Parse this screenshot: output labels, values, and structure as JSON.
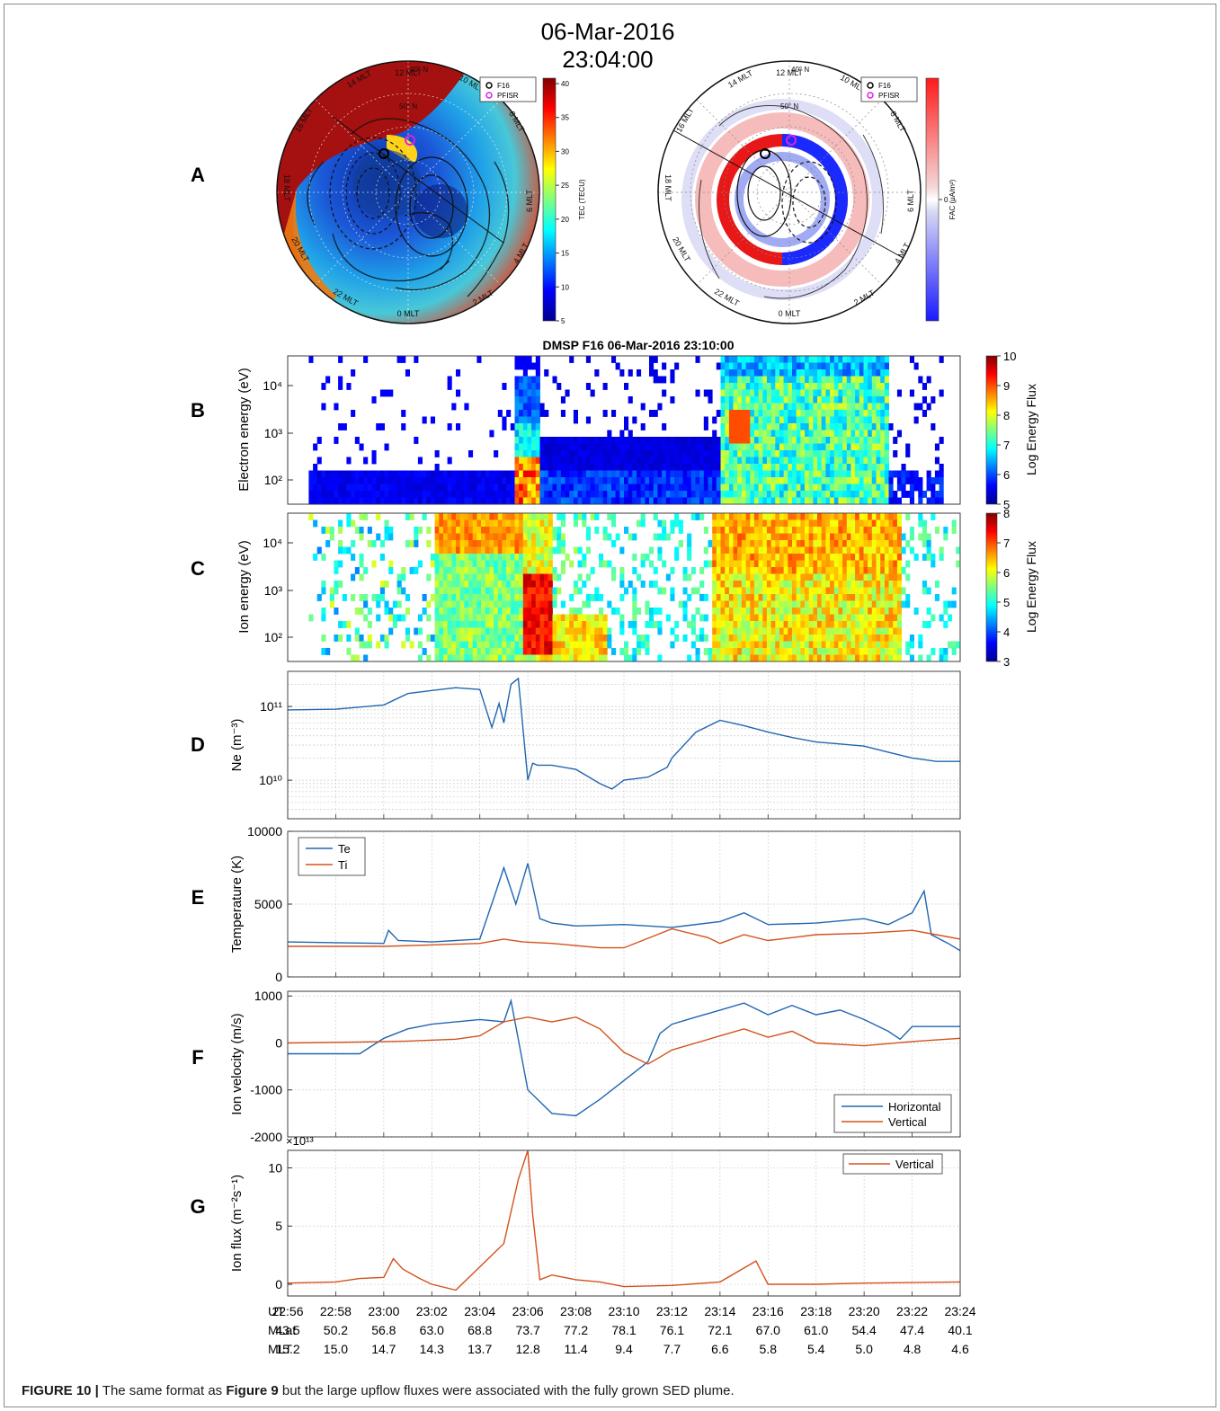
{
  "header": {
    "date": "06-Mar-2016",
    "time": "23:04:00"
  },
  "panel_letters": [
    "A",
    "B",
    "C",
    "D",
    "E",
    "F",
    "G"
  ],
  "map_left": {
    "legend": [
      "F16",
      "PFISR"
    ],
    "mlt_labels": [
      "12 MLT",
      "14 MLT",
      "10 MLT",
      "16 MLT",
      "8 MLT",
      "18 MLT",
      "6 MLT",
      "20 MLT",
      "4 MLT",
      "22 MLT",
      "2 MLT",
      "0 MLT"
    ],
    "lat_labels": [
      "40° N",
      "50° N"
    ],
    "colorbar_label": "TEC (TECU)",
    "colorbar_ticks": [
      "40",
      "35",
      "30",
      "25",
      "20",
      "15",
      "10",
      "5"
    ]
  },
  "map_right": {
    "legend": [
      "F16",
      "PFISR"
    ],
    "mlt_labels": [
      "12 MLT",
      "14 MLT",
      "10 MLT",
      "16 MLT",
      "8 MLT",
      "18 MLT",
      "6 MLT",
      "20 MLT",
      "4 MLT",
      "22 MLT",
      "2 MLT",
      "0 MLT"
    ],
    "lat_labels": [
      "40° N",
      "50° N"
    ],
    "colorbar_label": "FAC (μA/m²)",
    "colorbar_ticks": [
      "0"
    ]
  },
  "dmsp_title": "DMSP F16 06-Mar-2016 23:10:00",
  "colors": {
    "te": "#2166b0",
    "ti": "#d2521c",
    "horizontal": "#2166b0",
    "vertical": "#d2521c"
  },
  "chart_data": [
    {
      "panel": "B",
      "type": "heatmap",
      "ylabel": "Electron energy (eV)",
      "yticks": [
        "10²",
        "10³",
        "10⁴"
      ],
      "colorbar_label": "Log Energy Flux",
      "colorbar_ticks": [
        "5",
        "6",
        "7",
        "8",
        "9",
        "10"
      ],
      "colorbar_range": [
        5,
        10
      ]
    },
    {
      "panel": "C",
      "type": "heatmap",
      "ylabel": "Ion energy (eV)",
      "yticks": [
        "10²",
        "10³",
        "10⁴"
      ],
      "colorbar_label": "Log Energy Flux",
      "colorbar_ticks": [
        "3",
        "4",
        "5",
        "6",
        "7",
        "8"
      ],
      "colorbar_range": [
        3,
        8
      ]
    },
    {
      "panel": "D",
      "type": "line",
      "yscale": "log",
      "ylabel": "Ne (m⁻³)",
      "yticks": [
        "10¹⁰",
        "10¹¹"
      ],
      "ylim": [
        3000000000.0,
        300000000000.0
      ],
      "series": [
        {
          "x": [
            0,
            2,
            4,
            5,
            6,
            7,
            8,
            8.5,
            8.8,
            9,
            9.3,
            9.6,
            10,
            10.2,
            10.4,
            11,
            12,
            13,
            13.5,
            14,
            15,
            15.8,
            16,
            17,
            18,
            19,
            20,
            21,
            22,
            23,
            24,
            25,
            26,
            27,
            28
          ],
          "y": [
            90000000000.0,
            92000000000.0,
            105000000000.0,
            150000000000.0,
            165000000000.0,
            180000000000.0,
            170000000000.0,
            52000000000.0,
            110000000000.0,
            60000000000.0,
            200000000000.0,
            240000000000.0,
            10000000000.0,
            17000000000.0,
            16000000000.0,
            16000000000.0,
            14000000000.0,
            9000000000.0,
            7600000000.0,
            10000000000.0,
            11000000000.0,
            15000000000.0,
            20000000000.0,
            45000000000.0,
            65000000000.0,
            55000000000.0,
            45000000000.0,
            38000000000.0,
            33000000000.0,
            31000000000.0,
            29000000000.0,
            24000000000.0,
            20000000000.0,
            18000000000.0,
            18000000000.0
          ]
        }
      ]
    },
    {
      "panel": "E",
      "type": "line",
      "ylabel": "Temperature (K)",
      "yticks": [
        "0",
        "5000",
        "10000"
      ],
      "ylim": [
        0,
        10000
      ],
      "legend": "top-left",
      "series": [
        {
          "name": "Te",
          "x": [
            0,
            2,
            4,
            4.2,
            4.6,
            6,
            8,
            8.6,
            9,
            9.5,
            10,
            10.5,
            11,
            12,
            14,
            16,
            18,
            19,
            20,
            22,
            24,
            25,
            26,
            26.5,
            26.8,
            27.5,
            28
          ],
          "y": [
            2400,
            2350,
            2300,
            3200,
            2500,
            2400,
            2600,
            5500,
            7500,
            5000,
            7800,
            4000,
            3700,
            3500,
            3600,
            3400,
            3800,
            4400,
            3600,
            3700,
            4000,
            3600,
            4400,
            5900,
            2900,
            2300,
            1800
          ]
        },
        {
          "name": "Ti",
          "x": [
            0,
            2,
            4,
            6,
            8,
            9,
            9.8,
            11,
            13,
            14,
            16,
            17.5,
            18,
            19,
            20,
            22,
            24,
            26,
            27,
            28
          ],
          "y": [
            2100,
            2100,
            2100,
            2200,
            2300,
            2600,
            2400,
            2300,
            2000,
            2000,
            3300,
            2700,
            2300,
            2900,
            2500,
            2900,
            3000,
            3200,
            2900,
            2600
          ]
        }
      ]
    },
    {
      "panel": "F",
      "type": "line",
      "ylabel": "Ion velocity (m/s)",
      "yticks": [
        "-2000",
        "-1000",
        "0",
        "1000"
      ],
      "ylim": [
        -2000,
        1100
      ],
      "legend": "bottom-right",
      "series": [
        {
          "name": "Horizontal",
          "x": [
            0,
            3,
            4,
            5,
            6,
            8,
            9,
            9.3,
            10,
            11,
            12,
            13,
            14,
            15,
            15.5,
            16,
            17,
            18,
            19,
            20,
            21,
            22,
            23,
            24,
            25,
            25.5,
            26,
            28
          ],
          "y": [
            -230,
            -230,
            100,
            300,
            400,
            500,
            450,
            900,
            -1000,
            -1500,
            -1550,
            -1200,
            -800,
            -400,
            200,
            400,
            550,
            700,
            850,
            600,
            800,
            600,
            700,
            500,
            250,
            80,
            350,
            350
          ]
        },
        {
          "name": "Vertical",
          "x": [
            0,
            3,
            5,
            7,
            8,
            9,
            10,
            11,
            12,
            13,
            14,
            15,
            15.5,
            16,
            17,
            18,
            19,
            20,
            21,
            22,
            24,
            26,
            28
          ],
          "y": [
            0,
            20,
            40,
            80,
            150,
            450,
            550,
            450,
            550,
            300,
            -200,
            -450,
            -300,
            -150,
            0,
            150,
            300,
            120,
            250,
            0,
            -60,
            30,
            100
          ]
        }
      ]
    },
    {
      "panel": "G",
      "type": "line",
      "ylabel": "Ion flux (m⁻²s⁻¹)",
      "yscale_note": "×10¹³",
      "yticks": [
        "0",
        "5",
        "10"
      ],
      "ylim": [
        -1,
        11.5
      ],
      "legend": "top-right",
      "series": [
        {
          "name": "Vertical",
          "x": [
            0,
            2,
            3,
            4,
            4.4,
            4.8,
            5.5,
            6,
            7,
            8,
            8.5,
            9,
            9.6,
            10,
            10.2,
            10.5,
            11,
            12,
            13,
            14,
            16,
            18,
            19.5,
            19.8,
            20,
            21,
            22,
            24,
            28
          ],
          "y": [
            0.1,
            0.2,
            0.5,
            0.6,
            2.2,
            1.3,
            0.5,
            0,
            -0.5,
            1.5,
            2.5,
            3.5,
            9,
            11.5,
            6,
            0.4,
            0.8,
            0.4,
            0.2,
            -0.2,
            -0.1,
            0.2,
            2.0,
            0.8,
            0,
            0,
            0,
            0.1,
            0.2
          ]
        }
      ]
    }
  ],
  "x_axis": {
    "row_labels": [
      "UT",
      "MLat",
      "MLT"
    ],
    "ut": [
      "22:56",
      "22:58",
      "23:00",
      "23:02",
      "23:04",
      "23:06",
      "23:08",
      "23:10",
      "23:12",
      "23:14",
      "23:16",
      "23:18",
      "23:20",
      "23:22",
      "23:24"
    ],
    "mlat": [
      "43.5",
      "50.2",
      "56.8",
      "63.0",
      "68.8",
      "73.7",
      "77.2",
      "78.1",
      "76.1",
      "72.1",
      "67.0",
      "61.0",
      "54.4",
      "47.4",
      "40.1"
    ],
    "mlt": [
      "15.2",
      "15.0",
      "14.7",
      "14.3",
      "13.7",
      "12.8",
      "11.4",
      "9.4",
      "7.7",
      "6.6",
      "5.8",
      "5.4",
      "5.0",
      "4.8",
      "4.6"
    ]
  },
  "caption": {
    "label": "FIGURE 10 |",
    "text_a": " The same format as ",
    "ref": "Figure 9",
    "text_b": " but the large upflow fluxes were associated with the fully grown SED plume."
  }
}
